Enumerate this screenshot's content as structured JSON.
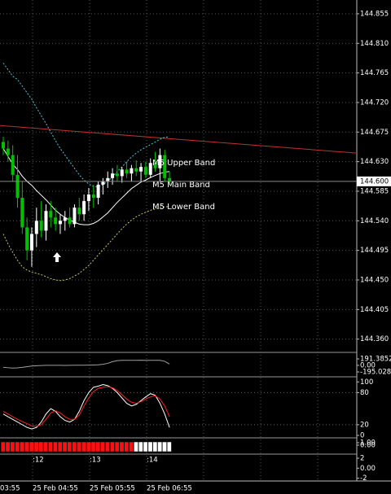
{
  "chart_data": [
    {
      "type": "candlestick",
      "ylim": [
        144.341,
        144.876
      ],
      "yticks": [
        144.855,
        {
          "value": 144.81,
          "label": "144.810"
        },
        144.765,
        {
          "value": 144.72,
          "label": "144.720"
        },
        144.675,
        {
          "value": 144.63,
          "label": "144.630"
        },
        144.585,
        {
          "value": 144.54,
          "label": "144.540"
        },
        144.495,
        {
          "value": 144.45,
          "label": "144.450"
        },
        144.405,
        {
          "value": 144.36,
          "label": "144.360"
        }
      ],
      "current_price": {
        "value": 144.6,
        "label": "144.600"
      },
      "up_color": "#ffffff",
      "down_color": "#00c000",
      "open": [
        144.66,
        144.65,
        144.64,
        144.61,
        144.575,
        144.53,
        144.495,
        144.52,
        144.54,
        144.525,
        144.555,
        144.545,
        144.535,
        144.54,
        144.545,
        144.535,
        144.56,
        144.55,
        144.57,
        144.58,
        144.575,
        144.595,
        144.6,
        144.605,
        144.612,
        144.608,
        144.618,
        144.612,
        144.62,
        144.615,
        144.622,
        144.61,
        144.628,
        144.62,
        144.64,
        144.605
      ],
      "high": [
        144.668,
        144.662,
        144.655,
        144.64,
        144.6,
        144.545,
        144.53,
        144.56,
        144.57,
        144.565,
        144.57,
        144.56,
        144.55,
        144.555,
        144.56,
        144.565,
        144.575,
        144.58,
        144.59,
        144.595,
        144.6,
        144.605,
        144.615,
        144.62,
        144.625,
        144.622,
        144.63,
        144.625,
        144.632,
        144.628,
        144.63,
        144.635,
        144.645,
        144.65,
        144.648,
        144.615
      ],
      "low": [
        144.64,
        144.63,
        144.6,
        144.56,
        144.52,
        144.48,
        144.47,
        144.5,
        144.515,
        144.51,
        144.53,
        144.525,
        144.52,
        144.525,
        144.53,
        144.53,
        144.54,
        144.54,
        144.555,
        144.56,
        144.565,
        144.58,
        144.59,
        144.595,
        144.6,
        144.598,
        144.605,
        144.6,
        144.608,
        144.6,
        144.605,
        144.605,
        144.615,
        144.6,
        144.6,
        144.595
      ],
      "close": [
        144.65,
        144.64,
        144.61,
        144.575,
        144.53,
        144.495,
        144.52,
        144.54,
        144.525,
        144.555,
        144.545,
        144.535,
        144.54,
        144.545,
        144.535,
        144.56,
        144.55,
        144.57,
        144.58,
        144.575,
        144.595,
        144.6,
        144.605,
        144.612,
        144.608,
        144.618,
        144.612,
        144.62,
        144.615,
        144.622,
        144.61,
        144.628,
        144.62,
        144.64,
        144.605,
        144.6
      ],
      "series": [
        {
          "name": "M5 Upper Band",
          "color": "#4fc8d8",
          "values": [
            144.78,
            144.77,
            144.76,
            144.755,
            144.745,
            144.735,
            144.725,
            144.712,
            144.7,
            144.688,
            144.675,
            144.662,
            144.65,
            144.64,
            144.63,
            144.62,
            144.61,
            144.602,
            144.596,
            144.592,
            144.592,
            144.595,
            144.6,
            144.607,
            144.615,
            144.622,
            144.63,
            144.637,
            144.643,
            144.648,
            144.652,
            144.656,
            144.66,
            144.664,
            144.667,
            144.668
          ]
        },
        {
          "name": "M5 Main Band",
          "color": "#ffffff",
          "values": [
            144.65,
            144.638,
            144.626,
            144.618,
            144.608,
            144.6,
            144.594,
            144.586,
            144.579,
            144.572,
            144.564,
            144.556,
            144.55,
            144.545,
            144.541,
            144.538,
            144.535,
            144.534,
            144.534,
            144.536,
            144.54,
            144.546,
            144.552,
            144.56,
            144.568,
            144.575,
            144.582,
            144.589,
            144.594,
            144.599,
            144.602,
            144.606,
            144.609,
            144.612,
            144.614,
            144.615
          ]
        },
        {
          "name": "M5 Lower Band",
          "color": "#c8c860",
          "values": [
            144.52,
            144.505,
            144.492,
            144.48,
            144.47,
            144.465,
            144.462,
            144.46,
            144.458,
            144.455,
            144.452,
            144.45,
            144.449,
            144.45,
            144.452,
            144.456,
            144.46,
            144.466,
            144.472,
            144.48,
            144.488,
            144.496,
            144.504,
            144.512,
            144.52,
            144.528,
            144.535,
            144.541,
            144.546,
            144.55,
            144.553,
            144.556,
            144.558,
            144.56,
            144.561,
            144.562
          ]
        }
      ],
      "trendline": {
        "color": "#c03030",
        "values": [
          144.685,
          144.643
        ]
      },
      "time_labels": [
        "03:55",
        "25 Feb 04:55",
        "25 Feb 05:55",
        "25 Feb 06:55"
      ],
      "day_labels": [
        ":12",
        ":13",
        ":14"
      ]
    },
    {
      "type": "line",
      "ylim": [
        -316,
        336
      ],
      "yticks": [
        191.3852,
        {
          "value": 0,
          "label": "0.00"
        },
        -195.028
      ],
      "series": [
        {
          "color": "#a0a0a0",
          "values": [
            -60,
            -70,
            -80,
            -75,
            -60,
            -40,
            -20,
            -10,
            -5,
            0,
            0,
            2,
            0,
            -2,
            0,
            3,
            5,
            5,
            8,
            10,
            15,
            30,
            60,
            110,
            140,
            150,
            150,
            148,
            150,
            152,
            150,
            150,
            150,
            148,
            120,
            40
          ]
        }
      ]
    },
    {
      "type": "line",
      "ylim": [
        -3,
        108
      ],
      "yticks": [
        100,
        80,
        20,
        0
      ],
      "series": [
        {
          "color": "#ffffff",
          "values": [
            40,
            35,
            30,
            25,
            20,
            15,
            12,
            15,
            25,
            40,
            50,
            45,
            35,
            28,
            25,
            30,
            45,
            65,
            80,
            90,
            92,
            95,
            93,
            88,
            80,
            70,
            60,
            55,
            58,
            65,
            72,
            78,
            75,
            60,
            40,
            15
          ]
        },
        {
          "color": "#ff2020",
          "values": [
            45,
            40,
            35,
            30,
            26,
            22,
            18,
            17,
            20,
            30,
            42,
            46,
            42,
            35,
            30,
            30,
            38,
            55,
            70,
            82,
            88,
            90,
            91,
            89,
            84,
            76,
            68,
            62,
            60,
            63,
            68,
            72,
            74,
            68,
            55,
            35
          ]
        }
      ]
    },
    {
      "type": "strip",
      "ylim": [
        -3.3,
        2.3
      ],
      "yticks": [
        {
          "value": 1,
          "label": "1.00"
        },
        {
          "value": 0,
          "label": "0.00"
        }
      ],
      "colors": [
        "#ff1010",
        "#ffffff"
      ],
      "values": [
        0,
        0,
        0,
        0,
        0,
        0,
        0,
        0,
        0,
        0,
        0,
        0,
        0,
        0,
        0,
        0,
        0,
        0,
        0,
        0,
        0,
        0,
        0,
        0,
        0,
        0,
        0,
        0,
        1,
        1,
        1,
        1,
        1,
        1,
        1,
        1
      ]
    },
    {
      "type": "empty",
      "ylim": [
        -2.4,
        2.5
      ],
      "yticks": [
        2,
        {
          "value": 0,
          "label": "0.00"
        },
        -2
      ]
    }
  ]
}
